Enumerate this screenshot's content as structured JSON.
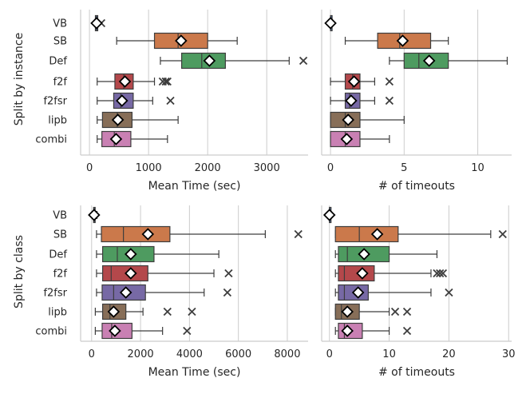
{
  "figure": {
    "row_labels": [
      "Split by instance",
      "Split by class"
    ]
  },
  "categories": [
    "VB",
    "SB",
    "Def",
    "f2f",
    "f2fsr",
    "lipb",
    "combi"
  ],
  "colors": {
    "VB": "#4c72b0",
    "SB": "#dd8452",
    "Def": "#55a868",
    "f2f": "#c44e52",
    "f2fsr": "#8172b3",
    "lipb": "#937860",
    "combi": "#da8bc3"
  },
  "chart_data": [
    {
      "id": "instance-time",
      "type": "box",
      "orientation": "horizontal",
      "xlabel": "Mean Time (sec)",
      "ylabel": "Split by instance",
      "xlim": [
        -150,
        3700
      ],
      "xticks": [
        0,
        1000,
        2000,
        3000
      ],
      "xtick_labels": [
        "0",
        "1000",
        "2000",
        "3000"
      ],
      "grid": true,
      "boxes": [
        {
          "name": "VB",
          "whislo": 100,
          "q1": 100,
          "med": 120,
          "q3": 140,
          "whishi": 150,
          "mean": 120,
          "fliers": [
            200
          ]
        },
        {
          "name": "SB",
          "whislo": 460,
          "q1": 1100,
          "med": 1500,
          "q3": 2000,
          "whishi": 2500,
          "mean": 1550,
          "fliers": []
        },
        {
          "name": "Def",
          "whislo": 1200,
          "q1": 1560,
          "med": 1900,
          "q3": 2300,
          "whishi": 3380,
          "mean": 2030,
          "fliers": [
            3620
          ]
        },
        {
          "name": "f2f",
          "whislo": 130,
          "q1": 430,
          "med": 580,
          "q3": 740,
          "whishi": 1100,
          "mean": 600,
          "fliers": [
            1240,
            1290,
            1320
          ]
        },
        {
          "name": "f2fsr",
          "whislo": 130,
          "q1": 410,
          "med": 530,
          "q3": 740,
          "whishi": 1070,
          "mean": 550,
          "fliers": [
            1370
          ]
        },
        {
          "name": "lipb",
          "whislo": 130,
          "q1": 220,
          "med": 470,
          "q3": 720,
          "whishi": 1500,
          "mean": 480,
          "fliers": []
        },
        {
          "name": "combi",
          "whislo": 130,
          "q1": 210,
          "med": 420,
          "q3": 700,
          "whishi": 1320,
          "mean": 450,
          "fliers": []
        }
      ]
    },
    {
      "id": "instance-timeouts",
      "type": "box",
      "orientation": "horizontal",
      "xlabel": "# of timeouts",
      "xlim": [
        -0.6,
        12.3
      ],
      "xticks": [
        0,
        5,
        10
      ],
      "xtick_labels": [
        "0",
        "5",
        "10"
      ],
      "grid": true,
      "boxes": [
        {
          "name": "VB",
          "whislo": 0,
          "q1": 0,
          "med": 0,
          "q3": 0,
          "whishi": 0,
          "mean": 0,
          "fliers": []
        },
        {
          "name": "SB",
          "whislo": 1,
          "q1": 3.2,
          "med": 4.7,
          "q3": 6.8,
          "whishi": 8,
          "mean": 4.9,
          "fliers": []
        },
        {
          "name": "Def",
          "whislo": 4,
          "q1": 5,
          "med": 6,
          "q3": 8,
          "whishi": 12,
          "mean": 6.7,
          "fliers": []
        },
        {
          "name": "f2f",
          "whislo": 0,
          "q1": 1,
          "med": 1.5,
          "q3": 2,
          "whishi": 3,
          "mean": 1.6,
          "fliers": [
            4
          ]
        },
        {
          "name": "f2fsr",
          "whislo": 0,
          "q1": 1,
          "med": 1.3,
          "q3": 2,
          "whishi": 3,
          "mean": 1.4,
          "fliers": [
            4
          ]
        },
        {
          "name": "lipb",
          "whislo": 0,
          "q1": 0,
          "med": 1,
          "q3": 2,
          "whishi": 5,
          "mean": 1.2,
          "fliers": []
        },
        {
          "name": "combi",
          "whislo": 0,
          "q1": 0,
          "med": 1,
          "q3": 2,
          "whishi": 4,
          "mean": 1.1,
          "fliers": []
        }
      ]
    },
    {
      "id": "class-time",
      "type": "box",
      "orientation": "horizontal",
      "xlabel": "Mean Time (sec)",
      "ylabel": "Split by class",
      "xlim": [
        -450,
        8850
      ],
      "xticks": [
        0,
        2000,
        4000,
        6000,
        8000
      ],
      "xtick_labels": [
        "0",
        "2000",
        "4000",
        "6000",
        "8000"
      ],
      "grid": true,
      "boxes": [
        {
          "name": "VB",
          "whislo": 60,
          "q1": 80,
          "med": 100,
          "q3": 130,
          "whishi": 220,
          "mean": 100,
          "fliers": []
        },
        {
          "name": "SB",
          "whislo": 200,
          "q1": 400,
          "med": 1300,
          "q3": 3200,
          "whishi": 7100,
          "mean": 2300,
          "fliers": [
            8450
          ]
        },
        {
          "name": "Def",
          "whislo": 200,
          "q1": 450,
          "med": 1050,
          "q3": 2550,
          "whishi": 5200,
          "mean": 1600,
          "fliers": []
        },
        {
          "name": "f2f",
          "whislo": 200,
          "q1": 450,
          "med": 800,
          "q3": 2300,
          "whishi": 5000,
          "mean": 1600,
          "fliers": [
            5600
          ]
        },
        {
          "name": "f2fsr",
          "whislo": 200,
          "q1": 430,
          "med": 900,
          "q3": 2200,
          "whishi": 4600,
          "mean": 1400,
          "fliers": [
            5550
          ]
        },
        {
          "name": "lipb",
          "whislo": 150,
          "q1": 450,
          "med": 750,
          "q3": 1400,
          "whishi": 2100,
          "mean": 900,
          "fliers": [
            3100,
            4100
          ]
        },
        {
          "name": "combi",
          "whislo": 150,
          "q1": 430,
          "med": 820,
          "q3": 1650,
          "whishi": 2900,
          "mean": 950,
          "fliers": [
            3900
          ]
        }
      ]
    },
    {
      "id": "class-timeouts",
      "type": "box",
      "orientation": "horizontal",
      "xlabel": "# of timeouts",
      "xlim": [
        -1.3,
        30.5
      ],
      "xticks": [
        0,
        10,
        20,
        30
      ],
      "xtick_labels": [
        "0",
        "10",
        "20",
        "30"
      ],
      "grid": true,
      "boxes": [
        {
          "name": "VB",
          "whislo": 0,
          "q1": 0,
          "med": 0,
          "q3": 0,
          "whishi": 0,
          "mean": 0,
          "fliers": []
        },
        {
          "name": "SB",
          "whislo": 1,
          "q1": 1,
          "med": 5,
          "q3": 11.5,
          "whishi": 27,
          "mean": 8,
          "fliers": [
            29
          ]
        },
        {
          "name": "Def",
          "whislo": 1,
          "q1": 1.5,
          "med": 3,
          "q3": 10,
          "whishi": 18,
          "mean": 5.8,
          "fliers": []
        },
        {
          "name": "f2f",
          "whislo": 1,
          "q1": 1.5,
          "med": 2.5,
          "q3": 7.5,
          "whishi": 17,
          "mean": 5.5,
          "fliers": [
            18,
            18.5,
            19
          ]
        },
        {
          "name": "f2fsr",
          "whislo": 1,
          "q1": 1.5,
          "med": 2.5,
          "q3": 6.5,
          "whishi": 17,
          "mean": 4.8,
          "fliers": [
            20
          ]
        },
        {
          "name": "lipb",
          "whislo": 1,
          "q1": 1,
          "med": 2,
          "q3": 5,
          "whishi": 10,
          "mean": 3,
          "fliers": [
            11,
            13
          ]
        },
        {
          "name": "combi",
          "whislo": 1,
          "q1": 1.5,
          "med": 2.5,
          "q3": 5.5,
          "whishi": 10,
          "mean": 3,
          "fliers": [
            13
          ]
        }
      ]
    }
  ]
}
